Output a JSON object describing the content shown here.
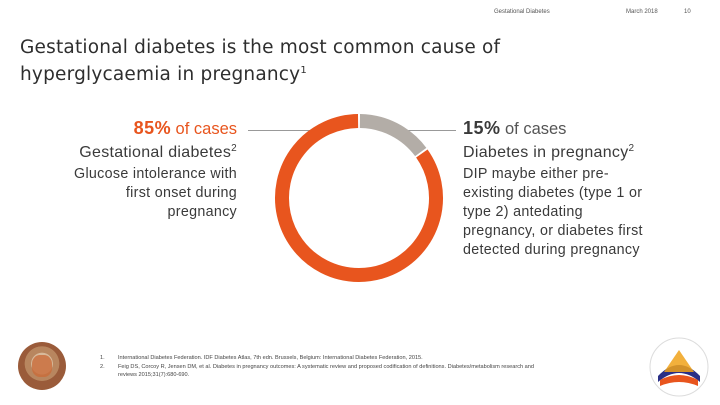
{
  "header": {
    "topic": "Gestational Diabetes",
    "date": "March 2018",
    "page": "10"
  },
  "title": {
    "line1": "Gestational diabetes is the most common cause of",
    "line2": "hyperglycaemia in pregnancy",
    "sup": "1"
  },
  "left": {
    "percent": "85%",
    "percent_label": "of cases",
    "heading": "Gestational diabetes",
    "heading_sup": "2",
    "body": [
      "Glucose intolerance with",
      "first onset during",
      "pregnancy"
    ]
  },
  "right": {
    "percent": "15%",
    "percent_label": "of cases",
    "heading": "Diabetes in pregnancy",
    "heading_sup": "2",
    "body": [
      "DIP maybe either pre-",
      "existing diabetes (type 1 or",
      "type 2) antedating",
      "pregnancy, or diabetes first",
      "detected during pregnancy"
    ]
  },
  "chart_data": {
    "type": "pie",
    "categories": [
      "Gestational diabetes",
      "Diabetes in pregnancy"
    ],
    "values": [
      85,
      15
    ],
    "colors": [
      "#e8551e",
      "#b3ada7"
    ]
  },
  "references": [
    {
      "num": "1.",
      "text": "International Diabetes Federation. IDF Diabetes Atlas, 7th edn. Brussels, Belgium: International Diabetes Federation, 2015."
    },
    {
      "num": "2.",
      "text": "Feig DS, Corcoy R, Jensen DM, et al. Diabetes in pregnancy outcomes: A systematic review and proposed codification of definitions. Diabetes/metabolism research and reviews 2015;31(7):680-690."
    }
  ]
}
